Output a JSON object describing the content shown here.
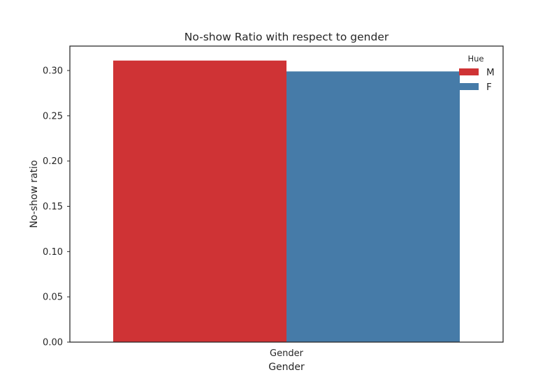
{
  "chart_data": {
    "type": "bar",
    "title": "No-show Ratio with respect to gender",
    "xlabel": "Gender",
    "ylabel": "No-show ratio",
    "categories": [
      "Gender"
    ],
    "series": [
      {
        "name": "M",
        "color": "#cf3335",
        "values": [
          0.311
        ]
      },
      {
        "name": "F",
        "color": "#467ba8",
        "values": [
          0.299
        ]
      }
    ],
    "ylim": [
      0,
      0.327
    ],
    "yticks": [
      "0.00",
      "0.05",
      "0.10",
      "0.15",
      "0.20",
      "0.25",
      "0.30"
    ],
    "legend": {
      "title": "Hue",
      "position": "top-right"
    },
    "grid": false
  }
}
